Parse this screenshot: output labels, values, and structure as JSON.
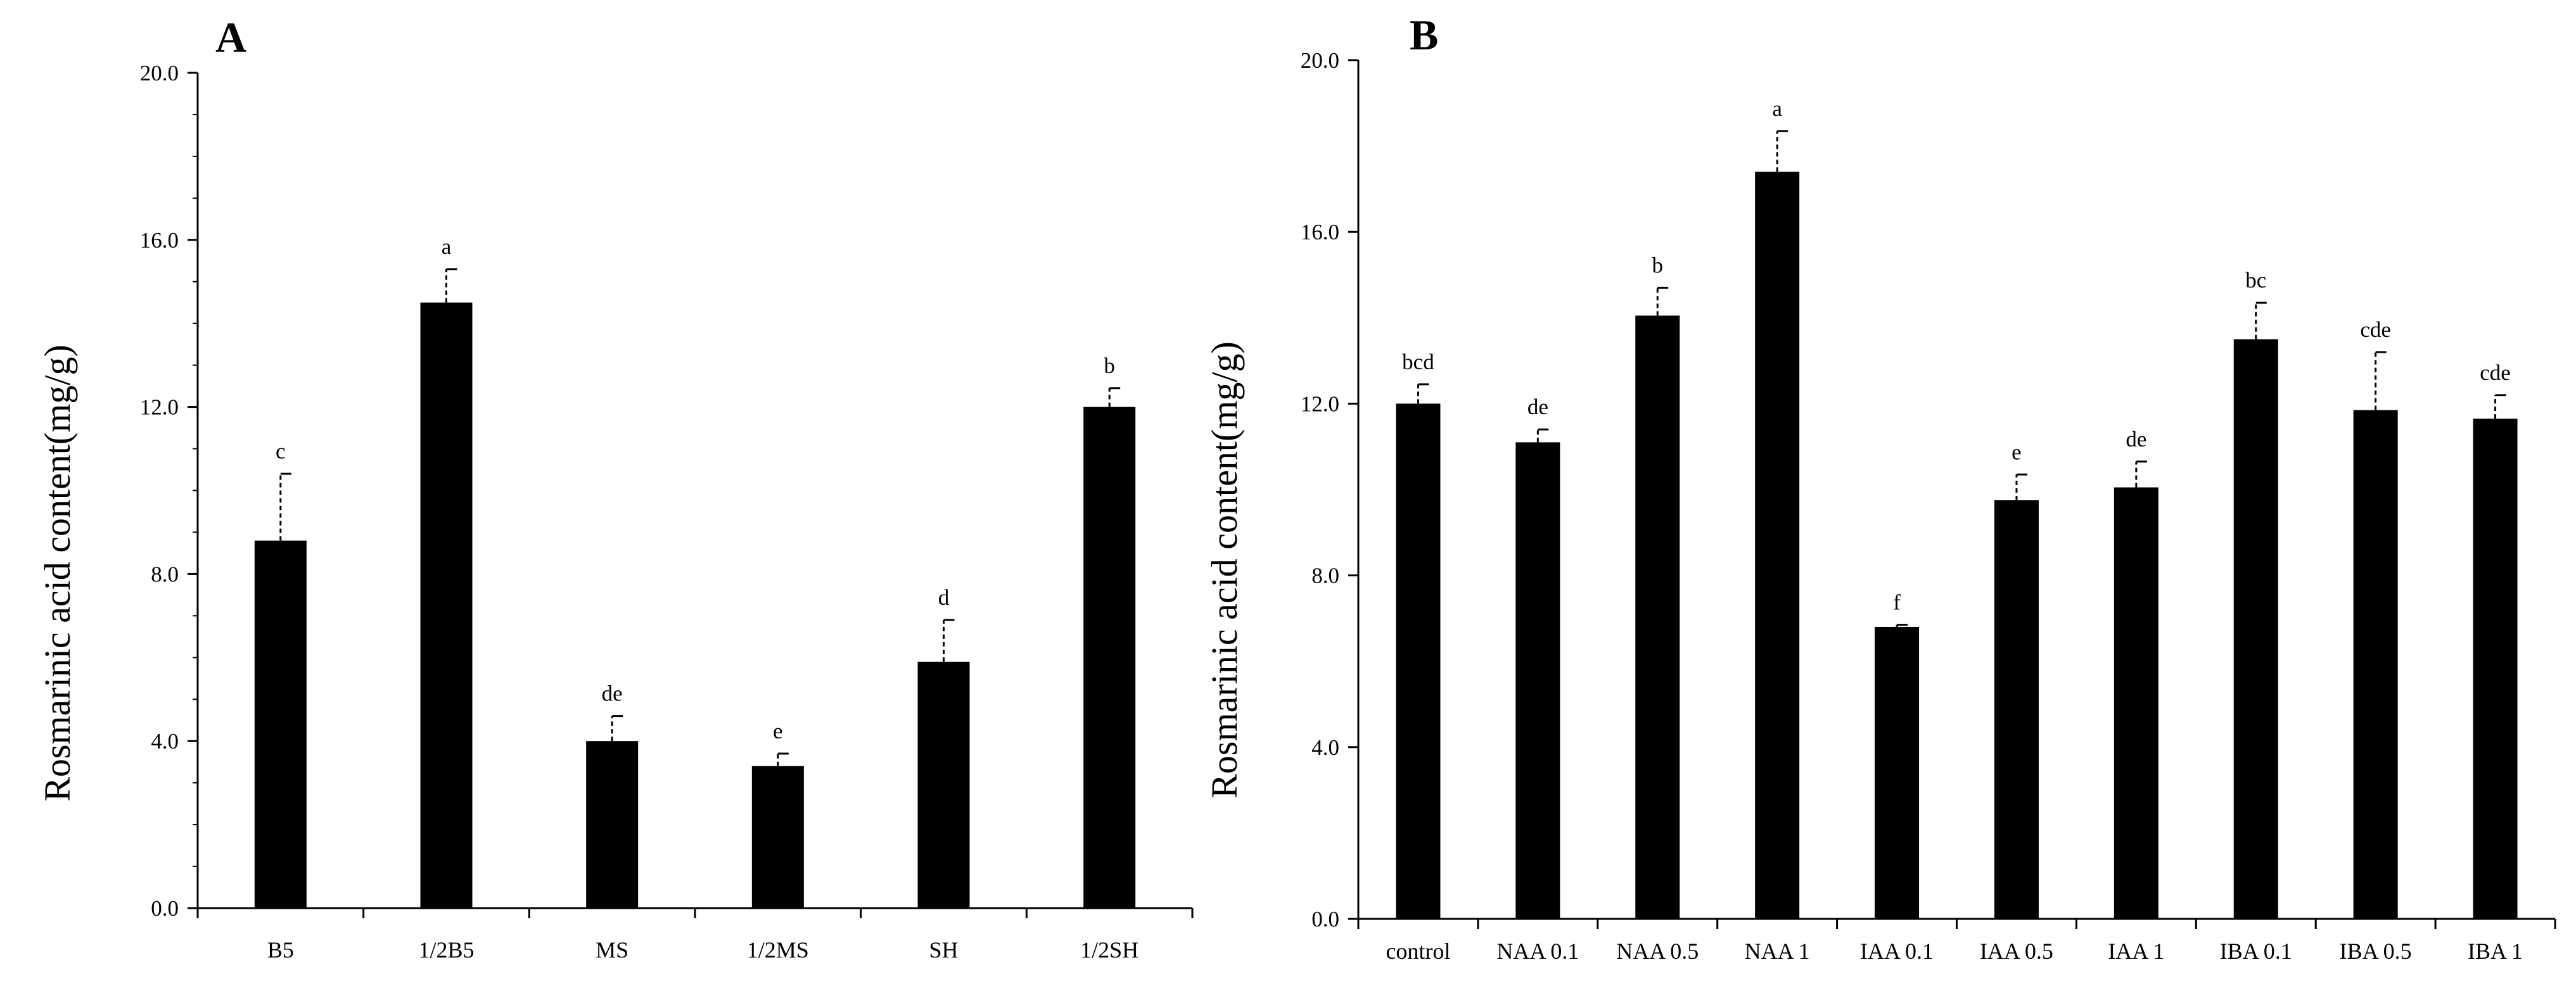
{
  "chart_data": [
    {
      "type": "bar",
      "panel": "A",
      "ylabel": "Rosmarinic  acid content(mg/g)",
      "xlabel": "",
      "ylim": [
        0,
        20
      ],
      "yticks": [
        "0.0",
        "4.0",
        "8.0",
        "12.0",
        "16.0",
        "20.0"
      ],
      "categories": [
        "B5",
        "1/2B5",
        "MS",
        "1/2MS",
        "SH",
        "1/2SH"
      ],
      "values": [
        8.8,
        14.5,
        4.0,
        3.4,
        5.9,
        12.0
      ],
      "errors": [
        1.6,
        0.8,
        0.6,
        0.3,
        1.0,
        0.45
      ],
      "significance": [
        "c",
        "a",
        "de",
        "e",
        "d",
        "b"
      ],
      "bar_color": "#000000"
    },
    {
      "type": "bar",
      "panel": "B",
      "ylabel": "Rosmarinic  acid content(mg/g)",
      "xlabel": "",
      "ylim": [
        0,
        20
      ],
      "yticks": [
        "0.0",
        "4.0",
        "8.0",
        "12.0",
        "16.0",
        "20.0"
      ],
      "categories": [
        "control",
        "NAA 0.1",
        "NAA 0.5",
        "NAA 1",
        "IAA 0.1",
        "IAA 0.5",
        "IAA 1",
        "IBA 0.1",
        "IBA 0.5",
        "IBA 1"
      ],
      "values": [
        12.0,
        11.1,
        14.05,
        17.4,
        6.8,
        9.75,
        10.05,
        13.5,
        11.85,
        11.65
      ],
      "errors": [
        0.45,
        0.3,
        0.65,
        0.95,
        0.05,
        0.6,
        0.6,
        0.85,
        1.35,
        0.55
      ],
      "significance": [
        "bcd",
        "de",
        "b",
        "a",
        "f",
        "e",
        "de",
        "bc",
        "cde",
        "cde"
      ],
      "bar_color": "#000000"
    }
  ]
}
